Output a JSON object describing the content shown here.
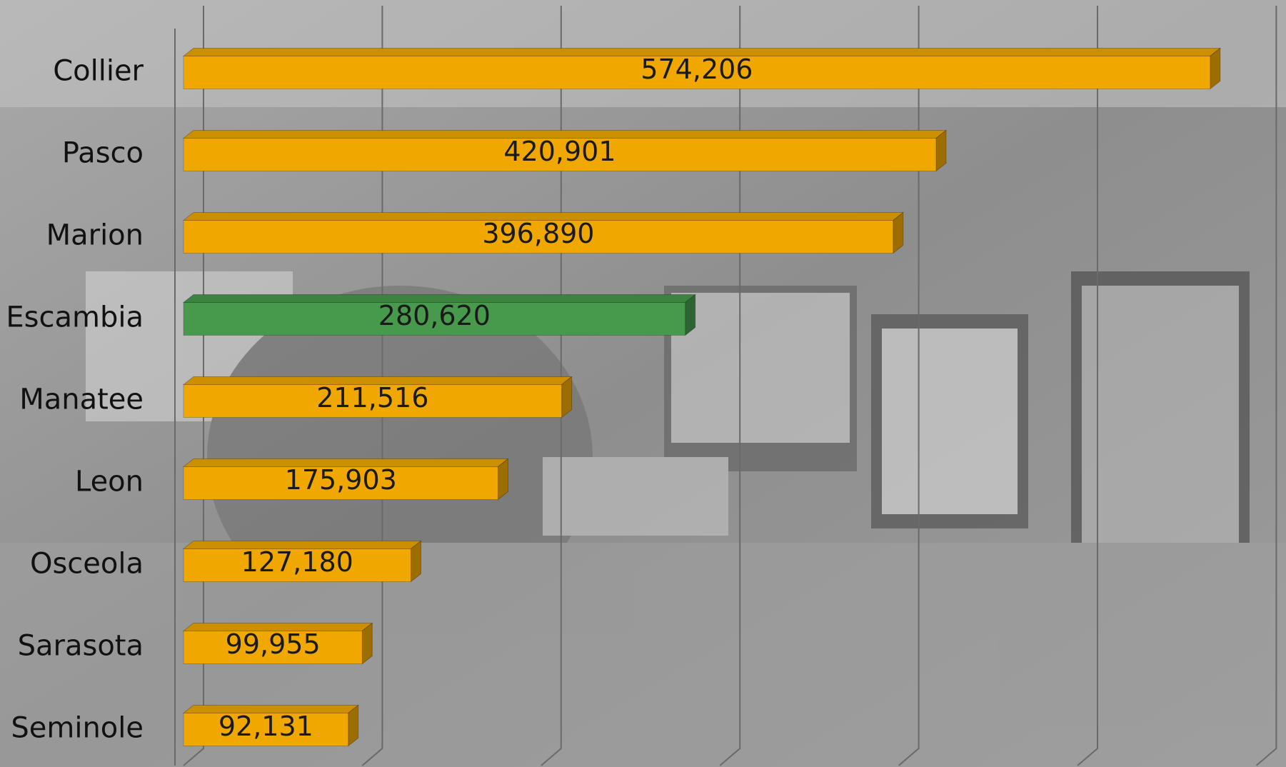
{
  "chart_data": {
    "type": "bar",
    "orientation": "horizontal",
    "categories": [
      "Collier",
      "Pasco",
      "Marion",
      "Escambia",
      "Manatee",
      "Leon",
      "Osceola",
      "Sarasota",
      "Seminole"
    ],
    "values": [
      574206,
      420901,
      396890,
      280620,
      211516,
      175903,
      127180,
      99955,
      92131
    ],
    "value_labels": [
      "574,206",
      "420,901",
      "396,890",
      "280,620",
      "211,516",
      "175,903",
      "127,180",
      "99,955",
      "92,131"
    ],
    "colors": [
      "#f0a800",
      "#f0a800",
      "#f0a800",
      "#479a4b",
      "#f0a800",
      "#f0a800",
      "#f0a800",
      "#f0a800",
      "#f0a800"
    ],
    "xlim": [
      0,
      600000
    ],
    "xticks": [
      0,
      100000,
      200000,
      300000,
      400000,
      500000,
      600000
    ],
    "grid": true
  }
}
